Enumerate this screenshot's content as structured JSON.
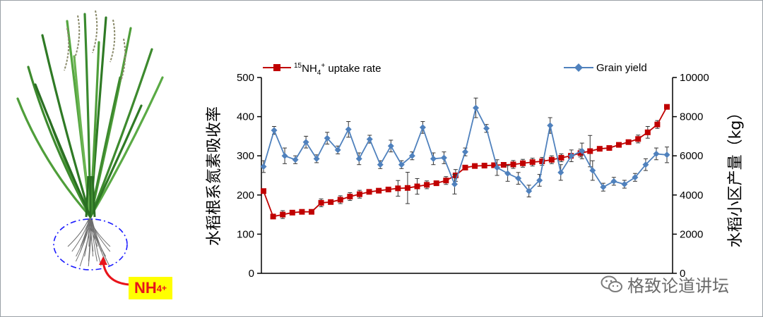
{
  "illustration": {
    "nh4_label": "NH4+",
    "nh4_base": "NH",
    "nh4_sub": "4",
    "nh4_sup": "+"
  },
  "watermark": {
    "text": "格致论道讲坛"
  },
  "colors": {
    "uptake": "#c00000",
    "yield": "#4f81bd",
    "axis": "#000000",
    "badge": "#ffff00",
    "arrow": "#e8141b"
  },
  "chart_data": {
    "type": "line",
    "title": "",
    "ylabel": "水稻根系氮素吸收率",
    "y2label": "水稻小区产量（kg）",
    "ylim": [
      0,
      500
    ],
    "y2lim": [
      0,
      10000
    ],
    "yticks": [
      "0",
      "100",
      "200",
      "300",
      "400",
      "500"
    ],
    "y2ticks": [
      "0",
      "2000",
      "4000",
      "6000",
      "8000",
      "10000"
    ],
    "legend": {
      "placement": "top",
      "uptake_label_pre": "15",
      "uptake_label_main": "NH",
      "uptake_label_sub": "4",
      "uptake_label_sup": "+",
      "uptake_label_post": " uptake rate",
      "yield_label": "Grain yield"
    },
    "series": [
      {
        "name": "15NH4+ uptake rate",
        "axis": "left",
        "marker": "square",
        "values": [
          210,
          145,
          150,
          155,
          157,
          157,
          180,
          182,
          188,
          196,
          202,
          208,
          211,
          214,
          217,
          218,
          222,
          226,
          230,
          237,
          250,
          270,
          274,
          275,
          276,
          277,
          278,
          281,
          284,
          286,
          290,
          295,
          300,
          307,
          312,
          318,
          320,
          328,
          335,
          343,
          360,
          380,
          425
        ],
        "errors": [
          5,
          5,
          10,
          5,
          5,
          3,
          10,
          5,
          10,
          10,
          10,
          5,
          5,
          5,
          20,
          40,
          20,
          10,
          5,
          10,
          15,
          5,
          5,
          5,
          5,
          5,
          10,
          10,
          10,
          10,
          10,
          10,
          5,
          10,
          40,
          5,
          5,
          5,
          5,
          10,
          15,
          10,
          5
        ]
      },
      {
        "name": "Grain yield",
        "axis": "right",
        "marker": "diamond",
        "values": [
          5450,
          7300,
          6000,
          5800,
          6700,
          5850,
          6900,
          6300,
          7350,
          5850,
          6850,
          5550,
          6500,
          5550,
          6000,
          7450,
          5850,
          5900,
          4550,
          6200,
          8450,
          7400,
          5400,
          5100,
          4850,
          4200,
          4750,
          7550,
          5150,
          6000,
          6250,
          5250,
          4400,
          4700,
          4550,
          4900,
          5550,
          6100,
          6050
        ],
        "errors": [
          300,
          200,
          400,
          200,
          300,
          200,
          300,
          200,
          400,
          300,
          200,
          200,
          300,
          200,
          200,
          300,
          300,
          300,
          500,
          200,
          500,
          200,
          400,
          400,
          300,
          300,
          300,
          400,
          400,
          300,
          400,
          500,
          200,
          200,
          200,
          200,
          300,
          300,
          400
        ]
      }
    ]
  }
}
